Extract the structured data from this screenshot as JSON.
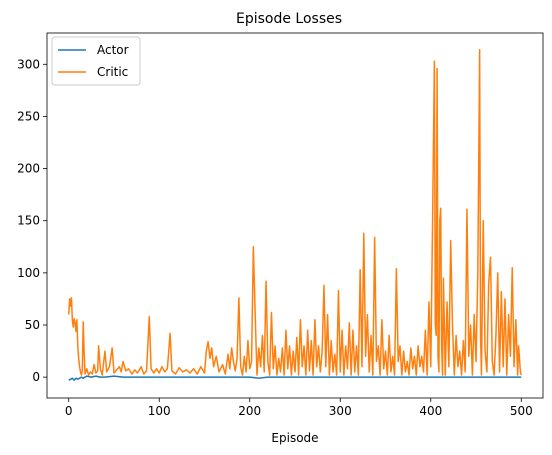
{
  "chart_data": {
    "type": "line",
    "title": "Episode Losses",
    "xlabel": "Episode",
    "ylabel": "",
    "xlim": [
      -24,
      524
    ],
    "ylim": [
      -20,
      330
    ],
    "xticks": [
      0,
      100,
      200,
      300,
      400,
      500
    ],
    "yticks": [
      0,
      50,
      100,
      150,
      200,
      250,
      300
    ],
    "grid": false,
    "legend_position": "top-left",
    "series": [
      {
        "name": "Actor",
        "color": "#1f77b4",
        "points": [
          [
            0,
            -3
          ],
          [
            2,
            -2
          ],
          [
            4,
            -1
          ],
          [
            6,
            -3
          ],
          [
            8,
            -1
          ],
          [
            10,
            -2
          ],
          [
            12,
            -1
          ],
          [
            14,
            0
          ],
          [
            16,
            -1
          ],
          [
            18,
            0
          ],
          [
            20,
            1
          ],
          [
            25,
            0
          ],
          [
            30,
            1
          ],
          [
            35,
            0
          ],
          [
            40,
            0
          ],
          [
            50,
            1
          ],
          [
            60,
            0
          ],
          [
            80,
            0
          ],
          [
            100,
            0
          ],
          [
            150,
            0
          ],
          [
            200,
            0
          ],
          [
            210,
            -1
          ],
          [
            220,
            0
          ],
          [
            300,
            0
          ],
          [
            400,
            0
          ],
          [
            450,
            0
          ],
          [
            480,
            0
          ],
          [
            500,
            0
          ]
        ]
      },
      {
        "name": "Critic",
        "color": "#ff7f0e",
        "points": [
          [
            0,
            60
          ],
          [
            1,
            75
          ],
          [
            2,
            68
          ],
          [
            3,
            76
          ],
          [
            4,
            55
          ],
          [
            5,
            48
          ],
          [
            6,
            56
          ],
          [
            7,
            52
          ],
          [
            8,
            44
          ],
          [
            9,
            55
          ],
          [
            10,
            30
          ],
          [
            11,
            18
          ],
          [
            12,
            10
          ],
          [
            13,
            5
          ],
          [
            14,
            2
          ],
          [
            15,
            6
          ],
          [
            16,
            53
          ],
          [
            17,
            25
          ],
          [
            18,
            3
          ],
          [
            20,
            8
          ],
          [
            22,
            2
          ],
          [
            24,
            5
          ],
          [
            26,
            3
          ],
          [
            28,
            12
          ],
          [
            30,
            4
          ],
          [
            32,
            6
          ],
          [
            33,
            30
          ],
          [
            35,
            8
          ],
          [
            37,
            2
          ],
          [
            40,
            25
          ],
          [
            42,
            5
          ],
          [
            45,
            10
          ],
          [
            48,
            28
          ],
          [
            50,
            4
          ],
          [
            53,
            7
          ],
          [
            56,
            10
          ],
          [
            58,
            5
          ],
          [
            60,
            15
          ],
          [
            63,
            6
          ],
          [
            66,
            8
          ],
          [
            70,
            3
          ],
          [
            73,
            7
          ],
          [
            76,
            4
          ],
          [
            80,
            10
          ],
          [
            83,
            3
          ],
          [
            86,
            6
          ],
          [
            89,
            58
          ],
          [
            91,
            8
          ],
          [
            94,
            4
          ],
          [
            97,
            8
          ],
          [
            100,
            4
          ],
          [
            103,
            10
          ],
          [
            106,
            5
          ],
          [
            109,
            8
          ],
          [
            112,
            42
          ],
          [
            114,
            6
          ],
          [
            118,
            3
          ],
          [
            122,
            9
          ],
          [
            126,
            5
          ],
          [
            130,
            7
          ],
          [
            134,
            4
          ],
          [
            138,
            8
          ],
          [
            142,
            3
          ],
          [
            146,
            10
          ],
          [
            150,
            4
          ],
          [
            152,
            25
          ],
          [
            154,
            34
          ],
          [
            156,
            18
          ],
          [
            158,
            28
          ],
          [
            160,
            10
          ],
          [
            163,
            20
          ],
          [
            166,
            5
          ],
          [
            170,
            12
          ],
          [
            173,
            3
          ],
          [
            176,
            22
          ],
          [
            178,
            8
          ],
          [
            180,
            28
          ],
          [
            182,
            15
          ],
          [
            184,
            6
          ],
          [
            186,
            18
          ],
          [
            188,
            76
          ],
          [
            190,
            10
          ],
          [
            192,
            2
          ],
          [
            194,
            20
          ],
          [
            196,
            5
          ],
          [
            198,
            35
          ],
          [
            200,
            8
          ],
          [
            202,
            15
          ],
          [
            204,
            125
          ],
          [
            206,
            60
          ],
          [
            208,
            2
          ],
          [
            210,
            28
          ],
          [
            212,
            10
          ],
          [
            214,
            40
          ],
          [
            216,
            5
          ],
          [
            218,
            92
          ],
          [
            220,
            15
          ],
          [
            222,
            2
          ],
          [
            224,
            62
          ],
          [
            226,
            8
          ],
          [
            228,
            30
          ],
          [
            230,
            2
          ],
          [
            232,
            18
          ],
          [
            234,
            5
          ],
          [
            236,
            28
          ],
          [
            238,
            2
          ],
          [
            240,
            45
          ],
          [
            242,
            8
          ],
          [
            244,
            30
          ],
          [
            246,
            2
          ],
          [
            248,
            25
          ],
          [
            250,
            5
          ],
          [
            252,
            38
          ],
          [
            254,
            2
          ],
          [
            256,
            55
          ],
          [
            258,
            10
          ],
          [
            260,
            30
          ],
          [
            262,
            2
          ],
          [
            264,
            45
          ],
          [
            266,
            6
          ],
          [
            268,
            35
          ],
          [
            270,
            2
          ],
          [
            272,
            55
          ],
          [
            274,
            10
          ],
          [
            276,
            30
          ],
          [
            278,
            5
          ],
          [
            280,
            25
          ],
          [
            282,
            88
          ],
          [
            284,
            10
          ],
          [
            286,
            60
          ],
          [
            288,
            2
          ],
          [
            290,
            35
          ],
          [
            292,
            5
          ],
          [
            294,
            22
          ],
          [
            296,
            2
          ],
          [
            298,
            83
          ],
          [
            300,
            5
          ],
          [
            302,
            45
          ],
          [
            304,
            2
          ],
          [
            306,
            30
          ],
          [
            308,
            8
          ],
          [
            310,
            52
          ],
          [
            312,
            2
          ],
          [
            314,
            45
          ],
          [
            316,
            5
          ],
          [
            318,
            30
          ],
          [
            320,
            2
          ],
          [
            322,
            103
          ],
          [
            324,
            10
          ],
          [
            326,
            138
          ],
          [
            328,
            20
          ],
          [
            330,
            60
          ],
          [
            332,
            5
          ],
          [
            334,
            40
          ],
          [
            336,
            2
          ],
          [
            338,
            134
          ],
          [
            340,
            15
          ],
          [
            342,
            30
          ],
          [
            344,
            2
          ],
          [
            346,
            55
          ],
          [
            348,
            8
          ],
          [
            350,
            25
          ],
          [
            352,
            2
          ],
          [
            354,
            40
          ],
          [
            356,
            5
          ],
          [
            358,
            20
          ],
          [
            360,
            2
          ],
          [
            362,
            104
          ],
          [
            364,
            15
          ],
          [
            366,
            30
          ],
          [
            368,
            2
          ],
          [
            370,
            25
          ],
          [
            372,
            5
          ],
          [
            374,
            15
          ],
          [
            376,
            2
          ],
          [
            378,
            28
          ],
          [
            380,
            8
          ],
          [
            382,
            20
          ],
          [
            384,
            2
          ],
          [
            386,
            30
          ],
          [
            388,
            10
          ],
          [
            390,
            20
          ],
          [
            392,
            5
          ],
          [
            394,
            45
          ],
          [
            396,
            2
          ],
          [
            398,
            72
          ],
          [
            400,
            10
          ],
          [
            402,
            150
          ],
          [
            404,
            303
          ],
          [
            405,
            50
          ],
          [
            406,
            40
          ],
          [
            407,
            296
          ],
          [
            408,
            20
          ],
          [
            409,
            5
          ],
          [
            410,
            150
          ],
          [
            411,
            162
          ],
          [
            412,
            30
          ],
          [
            413,
            2
          ],
          [
            414,
            95
          ],
          [
            415,
            50
          ],
          [
            416,
            2
          ],
          [
            418,
            72
          ],
          [
            420,
            10
          ],
          [
            422,
            131
          ],
          [
            424,
            50
          ],
          [
            426,
            2
          ],
          [
            428,
            40
          ],
          [
            430,
            10
          ],
          [
            432,
            25
          ],
          [
            434,
            2
          ],
          [
            436,
            35
          ],
          [
            438,
            5
          ],
          [
            440,
            161
          ],
          [
            442,
            20
          ],
          [
            444,
            50
          ],
          [
            446,
            2
          ],
          [
            448,
            60
          ],
          [
            450,
            15
          ],
          [
            452,
            100
          ],
          [
            454,
            314
          ],
          [
            455,
            40
          ],
          [
            456,
            2
          ],
          [
            458,
            150
          ],
          [
            460,
            25
          ],
          [
            462,
            5
          ],
          [
            464,
            90
          ],
          [
            466,
            115
          ],
          [
            468,
            15
          ],
          [
            470,
            2
          ],
          [
            472,
            40
          ],
          [
            474,
            100
          ],
          [
            476,
            5
          ],
          [
            478,
            82
          ],
          [
            480,
            10
          ],
          [
            482,
            75
          ],
          [
            484,
            2
          ],
          [
            486,
            60
          ],
          [
            488,
            20
          ],
          [
            490,
            105
          ],
          [
            492,
            10
          ],
          [
            494,
            55
          ],
          [
            496,
            2
          ],
          [
            497,
            30
          ],
          [
            498,
            18
          ],
          [
            499,
            5
          ],
          [
            500,
            2
          ]
        ]
      }
    ]
  }
}
